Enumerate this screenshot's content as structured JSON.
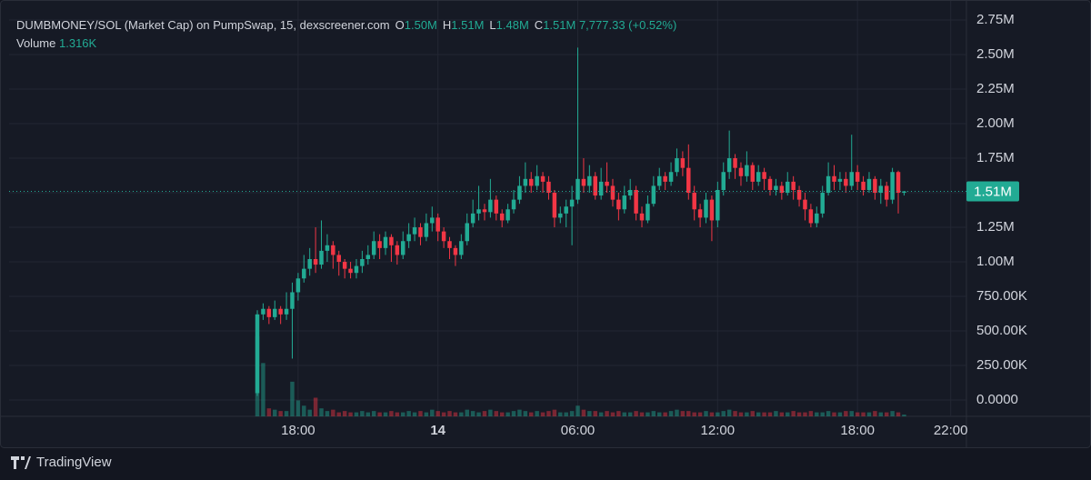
{
  "chart_data": {
    "type": "candlestick",
    "header": {
      "symbol": "DUMBMONEY/SOL (Market Cap) on PumpSwap, 15, dexscreener.com",
      "items": [
        {
          "key": "O",
          "value": "1.50M"
        },
        {
          "key": "H",
          "value": "1.51M"
        },
        {
          "key": "L",
          "value": "1.48M"
        },
        {
          "key": "C",
          "value": "1.51M"
        }
      ],
      "change": "7,777.33 (+0.52%)",
      "volume_label": "Volume",
      "volume_value": "1.316K"
    },
    "open": [
      50000,
      620000,
      660000,
      600000,
      660000,
      620000,
      660000,
      780000,
      880000,
      950000,
      1020000,
      980000,
      1080000,
      1120000,
      1050000,
      1000000,
      950000,
      920000,
      970000,
      1020000,
      1050000,
      1150000,
      1100000,
      1180000,
      1120000,
      1050000,
      1150000,
      1200000,
      1250000,
      1180000,
      1280000,
      1320000,
      1220000,
      1150000,
      1100000,
      1050000,
      1150000,
      1280000,
      1350000,
      1380000,
      1360000,
      1450000,
      1350000,
      1300000,
      1380000,
      1450000,
      1550000,
      1600000,
      1550000,
      1620000,
      1580000,
      1500000,
      1320000,
      1350000,
      1400000,
      1450000,
      1600000,
      1550000,
      1620000,
      1480000,
      1580000,
      1550000,
      1450000,
      1380000,
      1480000,
      1520000,
      1350000,
      1300000,
      1420000,
      1550000,
      1620000,
      1580000,
      1650000,
      1750000,
      1680000,
      1500000,
      1380000,
      1320000,
      1450000,
      1300000,
      1520000,
      1650000,
      1750000,
      1680000,
      1620000,
      1700000,
      1580000,
      1650000,
      1600000,
      1520000,
      1550000,
      1500000,
      1580000,
      1520000,
      1450000,
      1380000,
      1280000,
      1350000,
      1500000,
      1620000,
      1580000,
      1600000,
      1550000,
      1650000,
      1580000,
      1520000,
      1600000,
      1500000,
      1550000,
      1450000,
      1650000,
      1500000
    ],
    "high": [
      650000,
      700000,
      680000,
      720000,
      680000,
      780000,
      850000,
      920000,
      1050000,
      1100000,
      1250000,
      1300000,
      1200000,
      1150000,
      1080000,
      1020000,
      1000000,
      1020000,
      1080000,
      1120000,
      1220000,
      1200000,
      1220000,
      1200000,
      1150000,
      1220000,
      1280000,
      1320000,
      1280000,
      1350000,
      1400000,
      1350000,
      1250000,
      1180000,
      1120000,
      1200000,
      1350000,
      1450000,
      1550000,
      1420000,
      1600000,
      1480000,
      1380000,
      1420000,
      1520000,
      1620000,
      1720000,
      1650000,
      1700000,
      1650000,
      1620000,
      1520000,
      1400000,
      1450000,
      1550000,
      2550000,
      1750000,
      1700000,
      1650000,
      1680000,
      1720000,
      1600000,
      1500000,
      1550000,
      1600000,
      1550000,
      1400000,
      1480000,
      1620000,
      1680000,
      1650000,
      1720000,
      1820000,
      1800000,
      1850000,
      1550000,
      1420000,
      1500000,
      1480000,
      1580000,
      1720000,
      1950000,
      1780000,
      1720000,
      1800000,
      1720000,
      1700000,
      1680000,
      1620000,
      1600000,
      1580000,
      1650000,
      1620000,
      1550000,
      1500000,
      1420000,
      1400000,
      1550000,
      1720000,
      1700000,
      1650000,
      1650000,
      1920000,
      1700000,
      1620000,
      1650000,
      1620000,
      1600000,
      1580000,
      1680000,
      1660000,
      1510000
    ],
    "low": [
      30000,
      580000,
      550000,
      580000,
      550000,
      580000,
      300000,
      720000,
      850000,
      900000,
      920000,
      950000,
      1000000,
      950000,
      900000,
      880000,
      880000,
      880000,
      920000,
      980000,
      1020000,
      1020000,
      1050000,
      1000000,
      980000,
      1020000,
      1100000,
      1150000,
      1120000,
      1150000,
      1220000,
      1150000,
      1100000,
      1020000,
      970000,
      1020000,
      1120000,
      1250000,
      1300000,
      1300000,
      1320000,
      1300000,
      1250000,
      1280000,
      1350000,
      1420000,
      1500000,
      1500000,
      1520000,
      1500000,
      1450000,
      1250000,
      1280000,
      1250000,
      1120000,
      1420000,
      1500000,
      1500000,
      1450000,
      1450000,
      1500000,
      1400000,
      1300000,
      1350000,
      1450000,
      1300000,
      1250000,
      1280000,
      1400000,
      1520000,
      1520000,
      1550000,
      1620000,
      1620000,
      1450000,
      1300000,
      1250000,
      1280000,
      1150000,
      1250000,
      1480000,
      1600000,
      1600000,
      1550000,
      1580000,
      1520000,
      1550000,
      1520000,
      1480000,
      1480000,
      1450000,
      1480000,
      1450000,
      1400000,
      1300000,
      1250000,
      1250000,
      1320000,
      1480000,
      1520000,
      1520000,
      1500000,
      1520000,
      1520000,
      1480000,
      1500000,
      1450000,
      1420000,
      1400000,
      1420000,
      1350000,
      1480000
    ],
    "close": [
      620000,
      660000,
      600000,
      660000,
      620000,
      660000,
      780000,
      880000,
      950000,
      1020000,
      980000,
      1080000,
      1120000,
      1050000,
      1000000,
      950000,
      920000,
      970000,
      1020000,
      1050000,
      1150000,
      1100000,
      1180000,
      1120000,
      1050000,
      1150000,
      1200000,
      1250000,
      1180000,
      1280000,
      1320000,
      1220000,
      1150000,
      1100000,
      1050000,
      1150000,
      1280000,
      1350000,
      1380000,
      1360000,
      1450000,
      1350000,
      1300000,
      1380000,
      1450000,
      1550000,
      1600000,
      1550000,
      1620000,
      1580000,
      1500000,
      1320000,
      1350000,
      1400000,
      1450000,
      1600000,
      1550000,
      1620000,
      1480000,
      1580000,
      1550000,
      1450000,
      1380000,
      1480000,
      1520000,
      1350000,
      1300000,
      1420000,
      1550000,
      1620000,
      1580000,
      1650000,
      1750000,
      1680000,
      1500000,
      1380000,
      1320000,
      1450000,
      1300000,
      1520000,
      1650000,
      1750000,
      1680000,
      1620000,
      1700000,
      1580000,
      1650000,
      1600000,
      1520000,
      1550000,
      1500000,
      1580000,
      1520000,
      1450000,
      1380000,
      1280000,
      1350000,
      1500000,
      1620000,
      1580000,
      1600000,
      1550000,
      1650000,
      1580000,
      1520000,
      1600000,
      1500000,
      1550000,
      1450000,
      1650000,
      1500000,
      1510000
    ],
    "volume": [
      60000,
      40000,
      6000,
      5000,
      4000,
      4000,
      26000,
      12000,
      8000,
      5000,
      14000,
      6000,
      4000,
      5000,
      3000,
      4000,
      3000,
      3000,
      4000,
      3000,
      4000,
      3000,
      3000,
      4000,
      3000,
      3000,
      4000,
      3000,
      4000,
      3000,
      5000,
      4000,
      3000,
      4000,
      3000,
      3000,
      5000,
      4000,
      3000,
      4000,
      5000,
      4000,
      3000,
      3000,
      4000,
      5000,
      4000,
      3000,
      4000,
      3000,
      4000,
      5000,
      3000,
      3000,
      4000,
      8000,
      5000,
      4000,
      4000,
      3000,
      4000,
      3000,
      4000,
      3000,
      3000,
      4000,
      3000,
      3000,
      4000,
      3000,
      3000,
      4000,
      5000,
      4000,
      4000,
      3000,
      3000,
      4000,
      3000,
      3000,
      4000,
      5000,
      4000,
      3000,
      3000,
      4000,
      3000,
      3000,
      3000,
      4000,
      3000,
      3000,
      4000,
      3000,
      3000,
      4000,
      3000,
      3000,
      4000,
      3000,
      3000,
      4000,
      4000,
      3000,
      3000,
      3000,
      4000,
      3000,
      3000,
      4000,
      3000,
      1316
    ],
    "up_color": "#22ab94",
    "down_color": "#f23645",
    "ylim": [
      -118000,
      2829000
    ],
    "yticks": [
      {
        "value": 0,
        "label": "0.0000"
      },
      {
        "value": 250000,
        "label": "250.00K"
      },
      {
        "value": 500000,
        "label": "500.00K"
      },
      {
        "value": 750000,
        "label": "750.00K"
      },
      {
        "value": 1000000,
        "label": "1.00M"
      },
      {
        "value": 1250000,
        "label": "1.25M"
      },
      {
        "value": 1500000,
        "label": "1.50M"
      },
      {
        "value": 1750000,
        "label": "1.75M"
      },
      {
        "value": 2000000,
        "label": "2.00M"
      },
      {
        "value": 2250000,
        "label": "2.25M"
      },
      {
        "value": 2500000,
        "label": "2.50M"
      },
      {
        "value": 2750000,
        "label": "2.75M"
      }
    ],
    "xlim": [
      -42.6,
      121.7
    ],
    "xticks": [
      {
        "value": 7,
        "label": "18:00"
      },
      {
        "value": 31,
        "label": "14"
      },
      {
        "value": 55,
        "label": "06:00"
      },
      {
        "value": 79,
        "label": "12:00"
      },
      {
        "value": 103,
        "label": "18:00"
      },
      {
        "value": 119,
        "label": "22:00"
      }
    ],
    "last_price": {
      "value": 1510000,
      "label": "1.51M"
    },
    "grid": true
  },
  "footer": {
    "brand": "TradingView"
  }
}
